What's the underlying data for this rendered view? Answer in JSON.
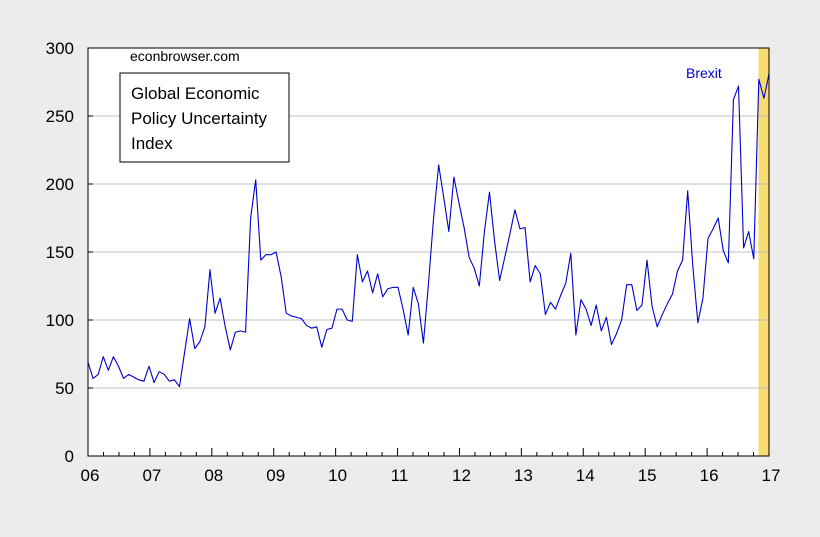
{
  "chart_data": {
    "type": "line",
    "title": "",
    "xlabel": "",
    "ylabel": "",
    "ylim": [
      0,
      300
    ],
    "yticks": [
      0,
      50,
      100,
      150,
      200,
      250,
      300
    ],
    "xlim": [
      2006.0,
      2017.0
    ],
    "xtick_labels": [
      "06",
      "07",
      "08",
      "09",
      "10",
      "11",
      "12",
      "13",
      "14",
      "15",
      "16",
      "17"
    ],
    "grid": "horizontal",
    "colors": {
      "line": "#0000cc",
      "shade": "#f7dc6f",
      "grid": "#c0c0c0",
      "plot_bg": "#ffffff"
    },
    "watermark": "econbrowser.com",
    "legend_box_lines": [
      "Global Economic",
      "Policy Uncertainty",
      "Index"
    ],
    "annotation": {
      "text": "Brexit",
      "color": "#0000cc"
    },
    "shaded_region": {
      "x_start": 2016.83,
      "x_end": 2017.0
    },
    "series": [
      {
        "name": "Global Economic Policy Uncertainty Index",
        "start": "2006-01",
        "frequency": "monthly",
        "values": [
          69,
          57,
          60,
          73,
          63,
          73,
          66,
          57,
          60,
          58,
          56,
          55,
          66,
          54,
          62,
          60,
          55,
          56,
          51,
          76,
          101,
          79,
          84,
          95,
          137,
          105,
          116,
          95,
          78,
          91,
          92,
          91,
          175,
          203,
          144,
          148,
          148,
          150,
          132,
          105,
          103,
          102,
          101,
          96,
          94,
          95,
          80,
          93,
          94,
          108,
          108,
          100,
          99,
          148,
          128,
          136,
          120,
          134,
          117,
          123,
          124,
          124,
          108,
          89,
          124,
          112,
          83,
          127,
          175,
          214,
          190,
          165,
          205,
          186,
          168,
          146,
          138,
          125,
          165,
          194,
          158,
          129,
          146,
          163,
          181,
          167,
          168,
          128,
          140,
          134,
          104,
          113,
          108,
          118,
          127,
          149,
          89,
          115,
          108,
          96,
          111,
          92,
          102,
          82,
          90,
          100,
          126,
          126,
          107,
          111,
          144,
          110,
          95,
          104,
          112,
          119,
          136,
          144,
          195,
          140,
          98,
          116,
          160,
          167,
          175,
          151,
          142,
          262,
          272,
          153,
          165,
          145,
          277,
          263,
          281
        ]
      }
    ]
  }
}
